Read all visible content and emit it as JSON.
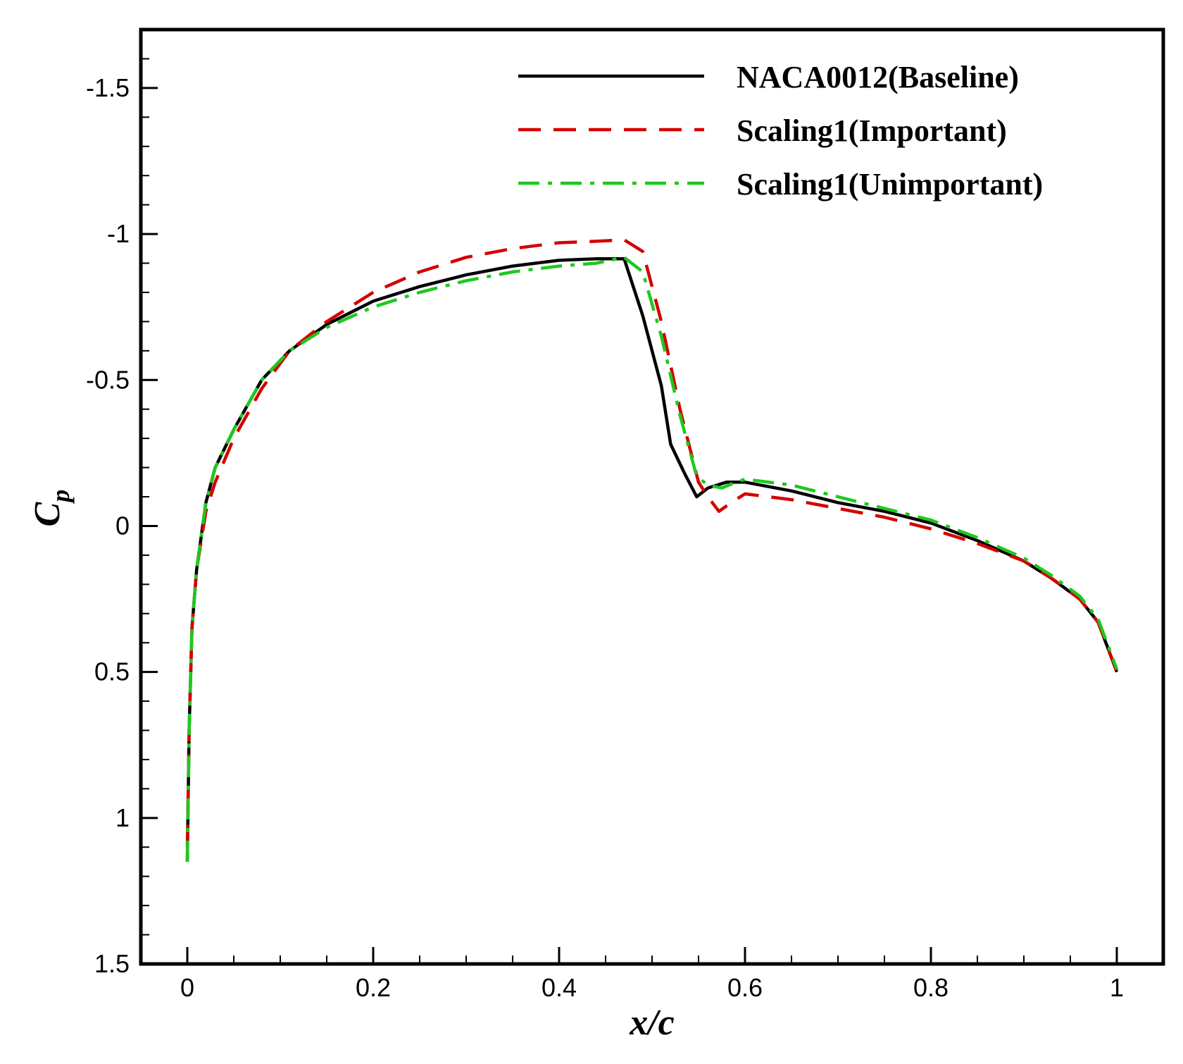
{
  "chart_data": {
    "type": "line",
    "title": "",
    "xlabel": "x/c",
    "ylabel_main": "C",
    "ylabel_sub": "p",
    "xlim": [
      -0.05,
      1.05
    ],
    "ylim": [
      1.5,
      -1.7
    ],
    "y_inverted": true,
    "grid": false,
    "legend_position": "top-right",
    "xticks": [
      0,
      0.2,
      0.4,
      0.6,
      0.8,
      1
    ],
    "xtick_labels": [
      "0",
      "0.2",
      "0.4",
      "0.6",
      "0.8",
      "1"
    ],
    "yticks": [
      -1.5,
      -1,
      -0.5,
      0,
      0.5,
      1,
      1.5
    ],
    "ytick_labels": [
      "-1.5",
      "-1",
      "-0.5",
      "0",
      "0.5",
      "1",
      "1.5"
    ],
    "series": [
      {
        "name": "NACA0012(Baseline)",
        "color": "#000000",
        "style": "solid",
        "x": [
          0,
          0.002,
          0.005,
          0.01,
          0.02,
          0.03,
          0.05,
          0.08,
          0.11,
          0.15,
          0.2,
          0.25,
          0.3,
          0.35,
          0.4,
          0.44,
          0.47,
          0.49,
          0.51,
          0.52,
          0.535,
          0.548,
          0.56,
          0.58,
          0.6,
          0.65,
          0.7,
          0.75,
          0.8,
          0.85,
          0.9,
          0.93,
          0.96,
          0.98,
          1.0
        ],
        "y": [
          1.15,
          0.7,
          0.35,
          0.15,
          -0.08,
          -0.2,
          -0.33,
          -0.5,
          -0.6,
          -0.69,
          -0.77,
          -0.82,
          -0.86,
          -0.89,
          -0.91,
          -0.915,
          -0.915,
          -0.72,
          -0.48,
          -0.28,
          -0.18,
          -0.1,
          -0.13,
          -0.15,
          -0.15,
          -0.12,
          -0.08,
          -0.05,
          -0.01,
          0.05,
          0.12,
          0.18,
          0.25,
          0.33,
          0.5
        ]
      },
      {
        "name": "Scaling1(Important)",
        "color": "#d40000",
        "style": "dashed",
        "x": [
          0,
          0.002,
          0.005,
          0.01,
          0.02,
          0.03,
          0.05,
          0.08,
          0.11,
          0.15,
          0.2,
          0.25,
          0.3,
          0.35,
          0.4,
          0.44,
          0.47,
          0.49,
          0.51,
          0.53,
          0.55,
          0.56,
          0.572,
          0.585,
          0.6,
          0.65,
          0.7,
          0.75,
          0.8,
          0.85,
          0.9,
          0.93,
          0.96,
          0.98,
          1.0
        ],
        "y": [
          1.1,
          0.7,
          0.35,
          0.15,
          -0.05,
          -0.15,
          -0.3,
          -0.47,
          -0.6,
          -0.7,
          -0.8,
          -0.87,
          -0.92,
          -0.95,
          -0.97,
          -0.975,
          -0.98,
          -0.94,
          -0.7,
          -0.4,
          -0.15,
          -0.1,
          -0.05,
          -0.08,
          -0.11,
          -0.09,
          -0.06,
          -0.03,
          0.01,
          0.06,
          0.12,
          0.18,
          0.25,
          0.33,
          0.5
        ]
      },
      {
        "name": "Scaling1(Unimportant)",
        "color": "#1ec81e",
        "style": "dashdot",
        "x": [
          0,
          0.002,
          0.005,
          0.01,
          0.02,
          0.03,
          0.05,
          0.08,
          0.11,
          0.15,
          0.2,
          0.25,
          0.3,
          0.35,
          0.4,
          0.44,
          0.47,
          0.49,
          0.51,
          0.53,
          0.548,
          0.56,
          0.575,
          0.59,
          0.6,
          0.65,
          0.7,
          0.75,
          0.8,
          0.85,
          0.9,
          0.93,
          0.96,
          0.98,
          1.0
        ],
        "y": [
          1.15,
          0.7,
          0.35,
          0.15,
          -0.08,
          -0.2,
          -0.33,
          -0.5,
          -0.6,
          -0.68,
          -0.75,
          -0.8,
          -0.84,
          -0.87,
          -0.89,
          -0.9,
          -0.92,
          -0.87,
          -0.65,
          -0.38,
          -0.17,
          -0.14,
          -0.13,
          -0.15,
          -0.16,
          -0.14,
          -0.1,
          -0.06,
          -0.02,
          0.04,
          0.11,
          0.17,
          0.24,
          0.32,
          0.49
        ]
      }
    ]
  }
}
